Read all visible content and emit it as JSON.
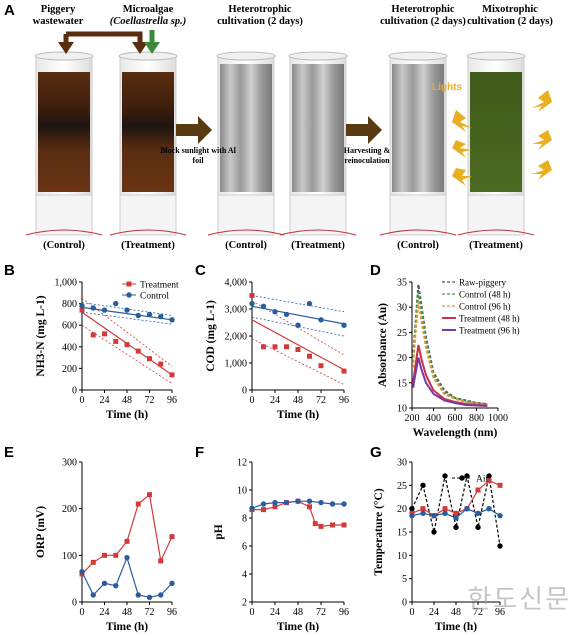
{
  "panel_A": {
    "label": "A",
    "piggery_label": "Piggery wastewater",
    "microalgae_label_line1": "Microalgae",
    "microalgae_label_line2": "(Coellastrella sp.)",
    "stage2_title": "Heterotrophic cultivation (2 days)",
    "stage3a_title": "Heterotrophic cultivation (2 days)",
    "stage3b_title": "Mixotrophic cultivation (2 days)",
    "arrow1_text": "Block sunlight with Al foil",
    "arrow2_text": "Harvesting & reinoculation",
    "lights_label": "Lights",
    "cylinder_captions": [
      "(Control)",
      "(Treatment)",
      "(Control)",
      "(Treatment)",
      "(Control)",
      "(Treatment)"
    ]
  },
  "watermark": "한도신문",
  "chart_data": [
    {
      "panel": "B",
      "type": "scatter",
      "ylabel": "NH3-N (mg L-1)",
      "xlabel": "Time (h)",
      "xlim": [
        0,
        96
      ],
      "ylim": [
        0,
        1000
      ],
      "xticks": [
        0,
        24,
        48,
        72,
        96
      ],
      "yticks": [
        0,
        200,
        400,
        600,
        800,
        1000
      ],
      "ytick_labels": [
        "0",
        "200",
        "400",
        "600",
        "800",
        "1,000"
      ],
      "legend": "top-right",
      "series": [
        {
          "name": "Treatment",
          "color": "#d23a3a",
          "marker": "square",
          "x": [
            0,
            12,
            24,
            36,
            48,
            60,
            72,
            84,
            96
          ],
          "y": [
            740,
            510,
            520,
            450,
            420,
            360,
            290,
            240,
            140
          ],
          "fit": [
            720,
            140
          ],
          "ci_upper": [
            850,
            220
          ],
          "ci_lower": [
            600,
            60
          ]
        },
        {
          "name": "Control",
          "color": "#2b5c9e",
          "marker": "circle",
          "x": [
            0,
            12,
            24,
            36,
            48,
            60,
            72,
            84,
            96
          ],
          "y": [
            780,
            760,
            740,
            800,
            740,
            690,
            700,
            680,
            650
          ],
          "fit": [
            765,
            650
          ],
          "ci_upper": [
            810,
            690
          ],
          "ci_lower": [
            720,
            610
          ]
        }
      ]
    },
    {
      "panel": "C",
      "type": "scatter",
      "ylabel": "COD (mg L-1)",
      "xlabel": "Time (h)",
      "xlim": [
        0,
        96
      ],
      "ylim": [
        0,
        4000
      ],
      "xticks": [
        0,
        24,
        48,
        72,
        96
      ],
      "yticks": [
        0,
        1000,
        2000,
        3000,
        4000
      ],
      "ytick_labels": [
        "0",
        "1,000",
        "2,000",
        "3,000",
        "4,000"
      ],
      "series": [
        {
          "name": "Treatment",
          "color": "#d23a3a",
          "marker": "square",
          "x": [
            0,
            12,
            24,
            36,
            48,
            60,
            72,
            84,
            96
          ],
          "y": [
            3500,
            1600,
            1600,
            1600,
            1500,
            1250,
            900,
            null,
            700
          ],
          "fit": [
            2600,
            750
          ],
          "ci_upper": [
            3300,
            1300
          ],
          "ci_lower": [
            1900,
            200
          ]
        },
        {
          "name": "Control",
          "color": "#2b5c9e",
          "marker": "circle",
          "x": [
            0,
            12,
            24,
            36,
            48,
            60,
            72,
            84,
            96
          ],
          "y": [
            3200,
            3100,
            2900,
            2800,
            2400,
            3200,
            2600,
            null,
            2400
          ],
          "fit": [
            3100,
            2450
          ],
          "ci_upper": [
            3500,
            2900
          ],
          "ci_lower": [
            2700,
            2000
          ]
        }
      ]
    },
    {
      "panel": "D",
      "type": "line",
      "ylabel": "Absorbance (Au)",
      "xlabel": "Wavelength (nm)",
      "xlim": [
        200,
        1000
      ],
      "ylim": [
        10,
        35
      ],
      "xticks": [
        200,
        400,
        600,
        800,
        1000
      ],
      "yticks": [
        10,
        15,
        20,
        25,
        30,
        35
      ],
      "legend": "top-right",
      "series": [
        {
          "name": "Raw-piggery",
          "color": "#555555",
          "dash": "dashed",
          "x": [
            210,
            230,
            260,
            290,
            330,
            400,
            500,
            600,
            700,
            800,
            900
          ],
          "y": [
            20,
            26,
            34.5,
            30,
            24,
            17,
            13.5,
            12,
            11.5,
            11,
            10.8
          ]
        },
        {
          "name": "Control (48 h)",
          "color": "#4a9a4a",
          "dash": "dashed",
          "x": [
            210,
            230,
            260,
            290,
            330,
            400,
            500,
            600,
            700,
            800,
            900
          ],
          "y": [
            19,
            25,
            33,
            29,
            23,
            16.5,
            13,
            12,
            11.3,
            11,
            10.8
          ]
        },
        {
          "name": "Control (96 h)",
          "color": "#d79a3a",
          "dash": "dashed",
          "x": [
            210,
            230,
            260,
            290,
            330,
            400,
            500,
            600,
            700,
            800,
            900
          ],
          "y": [
            18,
            24,
            31,
            27,
            22,
            16,
            12.8,
            11.8,
            11.2,
            10.9,
            10.7
          ]
        },
        {
          "name": "Treatment (48 h)",
          "color": "#c8304a",
          "dash": "solid",
          "x": [
            210,
            230,
            260,
            290,
            330,
            400,
            500,
            600,
            700,
            800,
            900
          ],
          "y": [
            15,
            18,
            22.5,
            19.5,
            16.5,
            13.5,
            11.8,
            11.2,
            10.8,
            10.6,
            10.5
          ]
        },
        {
          "name": "Treatment (96 h)",
          "color": "#7a3aa0",
          "dash": "solid",
          "x": [
            210,
            230,
            260,
            290,
            330,
            400,
            500,
            600,
            700,
            800,
            900
          ],
          "y": [
            14,
            16.5,
            20,
            17.5,
            15,
            12.8,
            11.5,
            11,
            10.6,
            10.5,
            10.4
          ]
        }
      ]
    },
    {
      "panel": "E",
      "type": "line",
      "ylabel": "ORP (mV)",
      "xlabel": "Time (h)",
      "xlim": [
        0,
        96
      ],
      "ylim": [
        0,
        300
      ],
      "xticks": [
        0,
        24,
        48,
        72,
        96
      ],
      "yticks": [
        0,
        100,
        200,
        300
      ],
      "series": [
        {
          "name": "Treatment",
          "color": "#d23a3a",
          "marker": "square",
          "x": [
            0,
            12,
            24,
            36,
            48,
            60,
            72,
            84,
            96
          ],
          "y": [
            60,
            85,
            100,
            100,
            130,
            210,
            230,
            88,
            140
          ]
        },
        {
          "name": "Control",
          "color": "#2b5c9e",
          "marker": "circle",
          "x": [
            0,
            12,
            24,
            36,
            48,
            60,
            72,
            84,
            96
          ],
          "y": [
            65,
            15,
            40,
            35,
            95,
            15,
            10,
            15,
            40
          ]
        }
      ]
    },
    {
      "panel": "F",
      "type": "line",
      "ylabel": "pH",
      "xlabel": "Time (h)",
      "xlim": [
        0,
        96
      ],
      "ylim": [
        2,
        12
      ],
      "xticks": [
        0,
        24,
        48,
        72,
        96
      ],
      "yticks": [
        2,
        4,
        6,
        8,
        10,
        12
      ],
      "series": [
        {
          "name": "Treatment",
          "color": "#d23a3a",
          "marker": "square",
          "x": [
            0,
            12,
            24,
            36,
            48,
            60,
            66,
            72,
            84,
            96
          ],
          "y": [
            8.6,
            8.6,
            8.8,
            9.1,
            9.2,
            8.8,
            7.6,
            7.4,
            7.5,
            7.5
          ]
        },
        {
          "name": "Control",
          "color": "#2b5c9e",
          "marker": "circle",
          "x": [
            0,
            12,
            24,
            36,
            48,
            60,
            72,
            84,
            96
          ],
          "y": [
            8.7,
            9.0,
            9.1,
            9.1,
            9.2,
            9.2,
            9.1,
            9.0,
            9.0
          ]
        }
      ]
    },
    {
      "panel": "G",
      "type": "line",
      "ylabel": "Temperature (°C)",
      "xlabel": "Time (h)",
      "xlim": [
        0,
        96
      ],
      "ylim": [
        0,
        30
      ],
      "xticks": [
        0,
        24,
        48,
        72,
        96
      ],
      "yticks": [
        0,
        5,
        10,
        15,
        20,
        25,
        30
      ],
      "legend": "top-right",
      "series": [
        {
          "name": "Air",
          "color": "#000000",
          "marker": "circle",
          "dash": "dashed",
          "x": [
            0,
            12,
            24,
            36,
            48,
            60,
            72,
            84,
            96
          ],
          "y": [
            20,
            25,
            15,
            27,
            16,
            27,
            16,
            27,
            12
          ]
        },
        {
          "name": "",
          "color": "#d23a3a",
          "marker": "square",
          "x": [
            0,
            12,
            24,
            36,
            48,
            60,
            72,
            84,
            96
          ],
          "y": [
            19,
            20,
            18.5,
            20,
            19,
            20,
            24,
            26,
            25
          ]
        },
        {
          "name": "",
          "color": "#2b5c9e",
          "marker": "circle",
          "x": [
            0,
            12,
            24,
            36,
            48,
            60,
            72,
            84,
            96
          ],
          "y": [
            18.5,
            19,
            18.5,
            19,
            18,
            20,
            19,
            20,
            18.5
          ]
        }
      ]
    }
  ]
}
